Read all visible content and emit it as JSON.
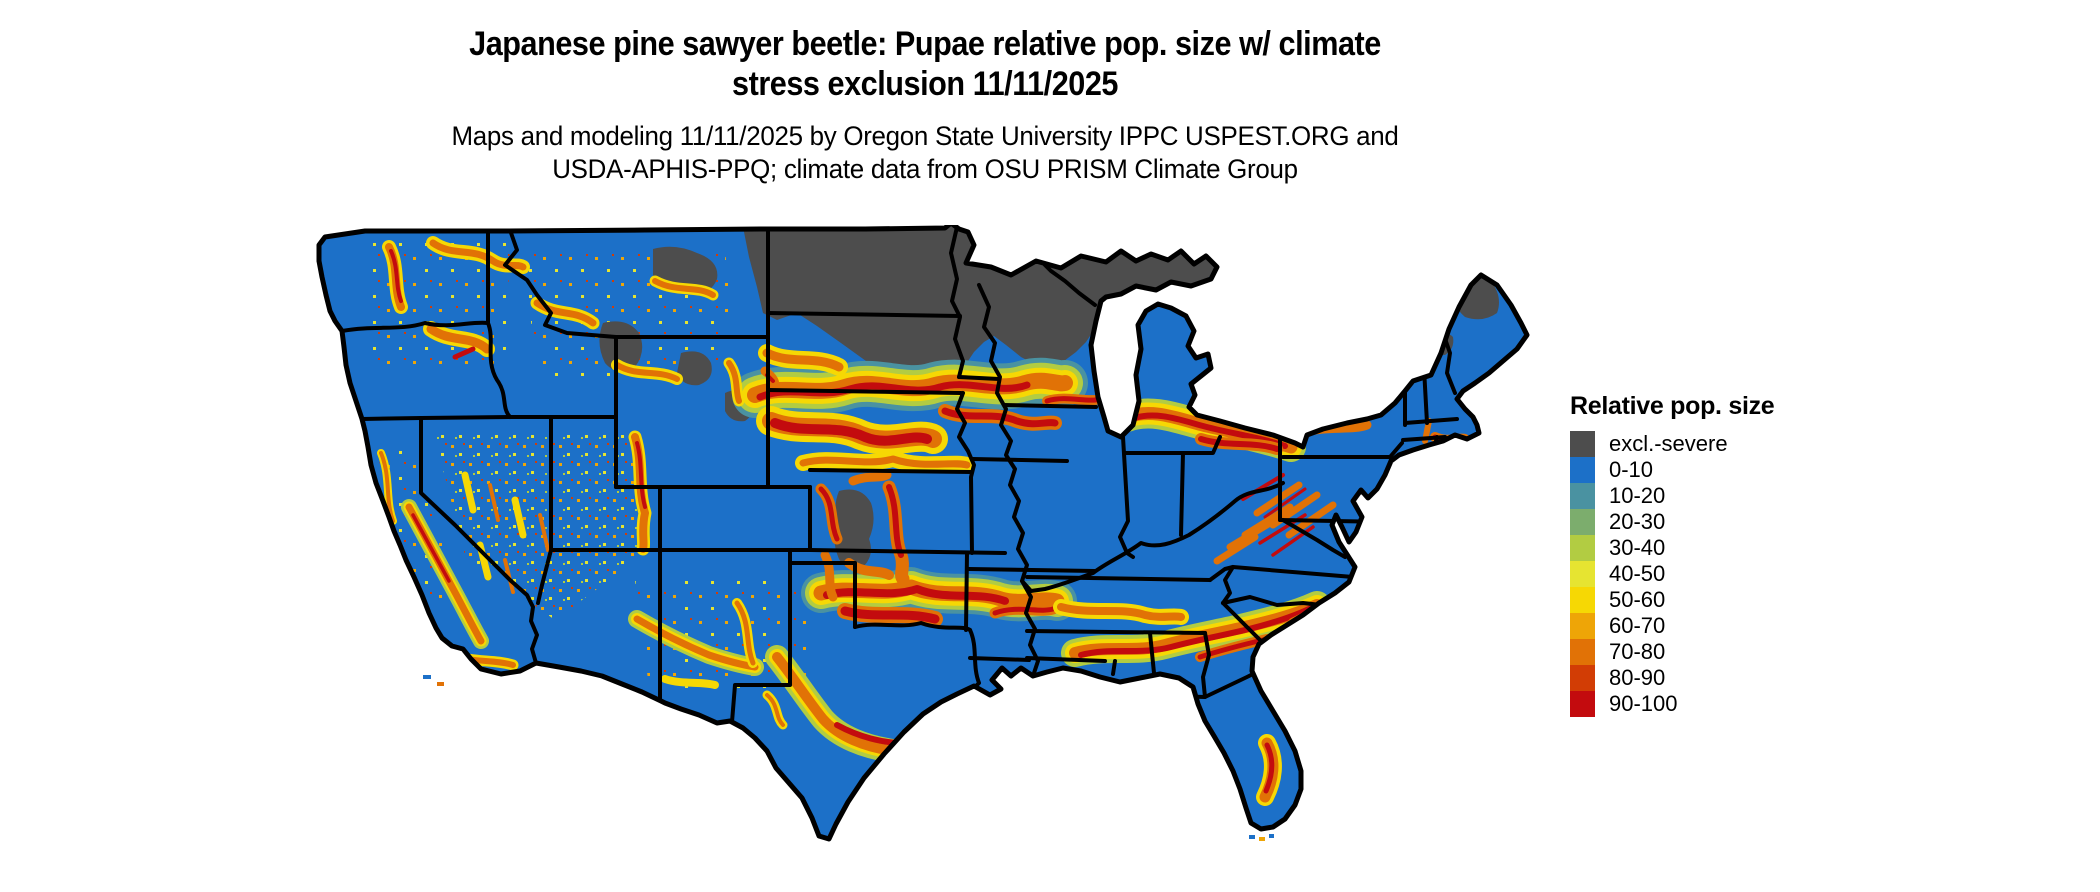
{
  "header": {
    "title_line1": "Japanese pine sawyer beetle: Pupae relative pop. size w/ climate",
    "title_line2": "stress exclusion 11/11/2025",
    "subtitle_line1": "Maps and modeling 11/11/2025 by Oregon State University IPPC USPEST.ORG and",
    "subtitle_line2": "USDA-APHIS-PPQ; climate data from OSU PRISM Climate Group"
  },
  "map": {
    "region": "contiguous United States",
    "kind": "raster choropleth with state borders",
    "border_color": "#000000",
    "background_color": "#ffffff"
  },
  "legend": {
    "title": "Relative pop. size",
    "items": [
      {
        "label": "excl.-severe",
        "color": "#4d4d4d"
      },
      {
        "label": "0-10",
        "color": "#1c70c8"
      },
      {
        "label": "10-20",
        "color": "#4a92a1"
      },
      {
        "label": "20-30",
        "color": "#7cad6d"
      },
      {
        "label": "30-40",
        "color": "#b2cc42"
      },
      {
        "label": "40-50",
        "color": "#e6e431"
      },
      {
        "label": "50-60",
        "color": "#f6d804"
      },
      {
        "label": "60-70",
        "color": "#eea507"
      },
      {
        "label": "70-80",
        "color": "#e17206"
      },
      {
        "label": "80-90",
        "color": "#d23d05"
      },
      {
        "label": "90-100",
        "color": "#c30b0e"
      }
    ]
  }
}
